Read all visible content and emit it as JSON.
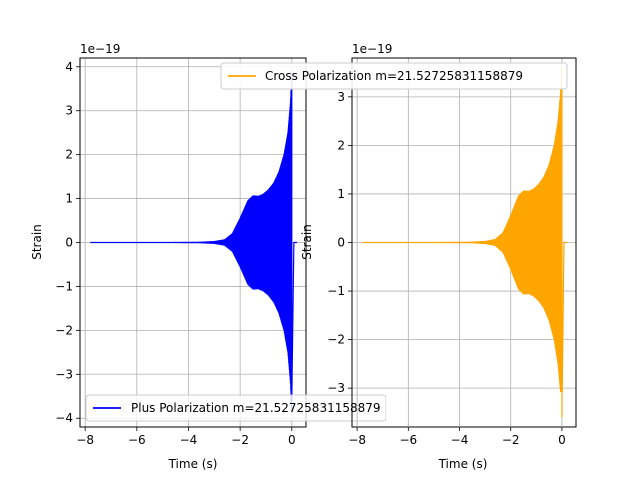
{
  "chart_data": [
    {
      "type": "line",
      "series": [
        {
          "name": "Plus Polarization m=21.52725831158879",
          "color": "#0000ff",
          "envelope_t": [
            -7.8,
            -5.0,
            -4.0,
            -3.5,
            -3.0,
            -2.6,
            -2.3,
            -2.0,
            -1.7,
            -1.5,
            -1.3,
            -1.1,
            -0.9,
            -0.7,
            -0.5,
            -0.3,
            -0.15,
            -0.05,
            0.0
          ],
          "envelope_amp": [
            0.0,
            0.0,
            0.002,
            0.005,
            0.02,
            0.06,
            0.2,
            0.55,
            0.95,
            1.06,
            1.05,
            1.1,
            1.2,
            1.35,
            1.6,
            2.0,
            2.5,
            3.2,
            3.9
          ],
          "min_value": -3.6
        }
      ],
      "xlabel": "Time (s)",
      "ylabel": "Strain",
      "offset_text": "1e−19",
      "xlim": [
        -8.2,
        0.55
      ],
      "ylim": [
        -4.2,
        4.2
      ],
      "xticks": [
        -8,
        -6,
        -4,
        -2,
        0
      ],
      "xtick_labels": [
        "−8",
        "−6",
        "−4",
        "−2",
        "0"
      ],
      "yticks": [
        -4,
        -3,
        -2,
        -1,
        0,
        1,
        2,
        3,
        4
      ],
      "ytick_labels": [
        "−4",
        "−3",
        "−2",
        "−1",
        "0",
        "1",
        "2",
        "3",
        "4"
      ],
      "grid": true,
      "legend": "lower-left"
    },
    {
      "type": "line",
      "series": [
        {
          "name": "Cross Polarization m=21.52725831158879",
          "color": "#ffa500",
          "envelope_t": [
            -7.8,
            -5.0,
            -4.0,
            -3.5,
            -3.0,
            -2.6,
            -2.3,
            -2.0,
            -1.7,
            -1.5,
            -1.3,
            -1.1,
            -0.9,
            -0.7,
            -0.5,
            -0.3,
            -0.15,
            -0.05,
            0.0
          ],
          "envelope_amp": [
            0.0,
            0.0,
            0.002,
            0.005,
            0.02,
            0.06,
            0.2,
            0.55,
            0.95,
            1.06,
            1.05,
            1.1,
            1.2,
            1.35,
            1.6,
            2.0,
            2.5,
            3.1,
            3.6
          ],
          "min_value": -3.6
        }
      ],
      "xlabel": "Time (s)",
      "ylabel": "Strain",
      "offset_text": "1e−19",
      "xlim": [
        -8.2,
        0.55
      ],
      "ylim": [
        -3.8,
        3.8
      ],
      "xticks": [
        -8,
        -6,
        -4,
        -2,
        0
      ],
      "xtick_labels": [
        "−8",
        "−6",
        "−4",
        "−2",
        "0"
      ],
      "yticks": [
        -3,
        -2,
        -1,
        0,
        1,
        2,
        3
      ],
      "ytick_labels": [
        "−3",
        "−2",
        "−1",
        "0",
        "1",
        "2",
        "3"
      ],
      "grid": true,
      "legend": "top-right"
    }
  ]
}
